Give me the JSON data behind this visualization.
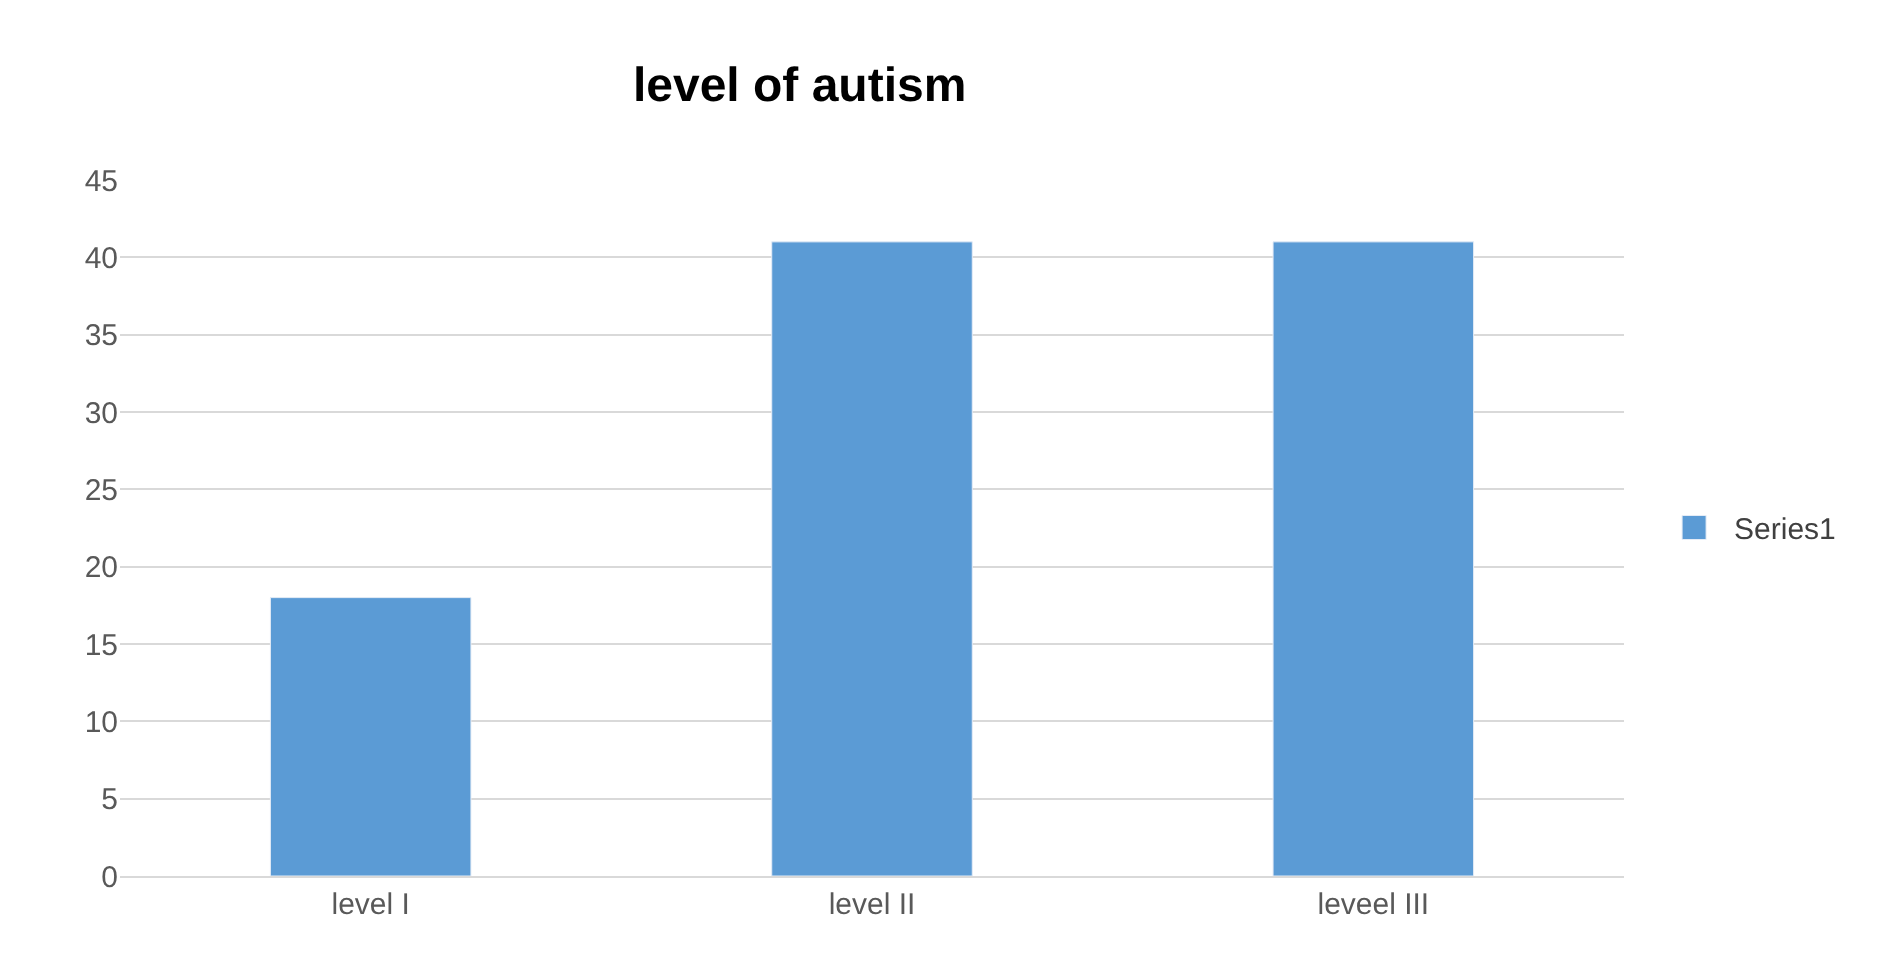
{
  "chart_data": {
    "type": "bar",
    "title": "level of autism",
    "categories": [
      "level I",
      "level II",
      "leveel III"
    ],
    "series": [
      {
        "name": "Series1",
        "color": "#5b9bd5",
        "values": [
          18,
          41,
          41
        ]
      }
    ],
    "ylim": [
      0,
      45
    ],
    "yticks": [
      0,
      5,
      10,
      15,
      20,
      25,
      30,
      35,
      40,
      45
    ],
    "grid": "y",
    "legend": "right"
  }
}
